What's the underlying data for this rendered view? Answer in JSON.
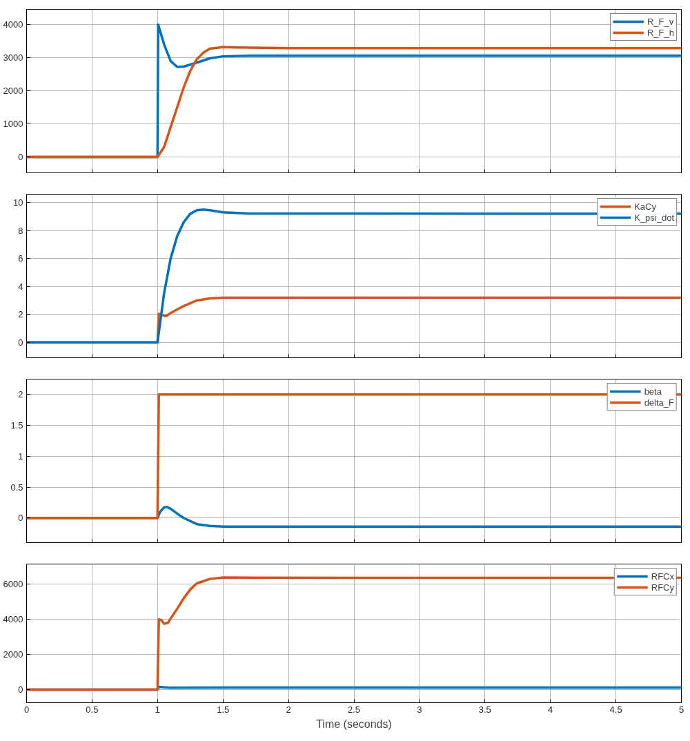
{
  "chart_data": [
    {
      "type": "line",
      "xlim": [
        0,
        5
      ],
      "xticks": [
        0,
        0.5,
        1,
        1.5,
        2,
        2.5,
        3,
        3.5,
        4,
        4.5,
        5
      ],
      "ylim": [
        -480,
        4460
      ],
      "yticks": [
        0,
        1000,
        2000,
        3000,
        4000
      ],
      "grid": true,
      "legend": "top right",
      "tick_labels": "y",
      "series": [
        {
          "name": "R_F_v",
          "color": "#0072bd",
          "x": [
            0,
            1.0,
            1.005,
            1.05,
            1.1,
            1.15,
            1.2,
            1.3,
            1.4,
            1.5,
            1.7,
            5
          ],
          "values": [
            0,
            0,
            4000,
            3400,
            2900,
            2720,
            2730,
            2850,
            2980,
            3040,
            3060,
            3060
          ]
        },
        {
          "name": "R_F_h",
          "color": "#d95319",
          "x": [
            0,
            1.0,
            1.05,
            1.1,
            1.15,
            1.2,
            1.25,
            1.3,
            1.35,
            1.4,
            1.5,
            1.6,
            2,
            5
          ],
          "values": [
            0,
            0,
            300,
            900,
            1500,
            2100,
            2600,
            2950,
            3150,
            3270,
            3320,
            3310,
            3290,
            3290
          ]
        }
      ]
    },
    {
      "type": "line",
      "xlim": [
        0,
        5
      ],
      "xticks": [
        0,
        0.5,
        1,
        1.5,
        2,
        2.5,
        3,
        3.5,
        4,
        4.5,
        5
      ],
      "ylim": [
        -1.1,
        10.6
      ],
      "yticks": [
        0,
        2,
        4,
        6,
        8,
        10
      ],
      "grid": true,
      "legend": "top right",
      "tick_labels": "y",
      "series": [
        {
          "name": "KaCy",
          "color": "#d95319",
          "x": [
            0,
            1.0,
            1.01,
            1.05,
            1.07,
            1.1,
            1.2,
            1.3,
            1.4,
            1.5,
            5
          ],
          "values": [
            0,
            0,
            2.05,
            1.9,
            1.9,
            2.1,
            2.6,
            3.0,
            3.15,
            3.2,
            3.2
          ]
        },
        {
          "name": "K_psi_dot",
          "color": "#0072bd",
          "x": [
            0,
            1.0,
            1.05,
            1.1,
            1.15,
            1.2,
            1.25,
            1.3,
            1.35,
            1.4,
            1.5,
            1.7,
            5
          ],
          "values": [
            0,
            0,
            3.5,
            6.0,
            7.6,
            8.6,
            9.2,
            9.45,
            9.5,
            9.45,
            9.3,
            9.22,
            9.2
          ]
        }
      ]
    },
    {
      "type": "line",
      "xlim": [
        0,
        5
      ],
      "xticks": [
        0,
        0.5,
        1,
        1.5,
        2,
        2.5,
        3,
        3.5,
        4,
        4.5,
        5
      ],
      "ylim": [
        -0.4,
        2.25
      ],
      "yticks": [
        0,
        0.5,
        1,
        1.5,
        2
      ],
      "grid": true,
      "legend": "top right",
      "tick_labels": "y",
      "series": [
        {
          "name": "beta",
          "color": "#0072bd",
          "x": [
            0,
            1.0,
            1.02,
            1.05,
            1.07,
            1.1,
            1.15,
            1.2,
            1.3,
            1.4,
            1.5,
            5
          ],
          "values": [
            0,
            0,
            0.1,
            0.17,
            0.18,
            0.15,
            0.07,
            0.0,
            -0.1,
            -0.13,
            -0.14,
            -0.14
          ]
        },
        {
          "name": "delta_F",
          "color": "#d95319",
          "x": [
            0,
            1.0,
            1.01,
            5
          ],
          "values": [
            0,
            0,
            2,
            2
          ]
        }
      ]
    },
    {
      "type": "line",
      "xlim": [
        0,
        5
      ],
      "xticks": [
        0,
        0.5,
        1,
        1.5,
        2,
        2.5,
        3,
        3.5,
        4,
        4.5,
        5
      ],
      "ylim": [
        -750,
        7150
      ],
      "yticks": [
        0,
        2000,
        4000,
        6000
      ],
      "grid": true,
      "legend": "top right",
      "xlabel": "Time (seconds)",
      "series": [
        {
          "name": "RFCx",
          "color": "#0072bd",
          "x": [
            0,
            1.0,
            1.01,
            1.1,
            1.5,
            5
          ],
          "values": [
            0,
            0,
            150,
            100,
            110,
            110
          ]
        },
        {
          "name": "RFCy",
          "color": "#d95319",
          "x": [
            0,
            1.0,
            1.01,
            1.03,
            1.05,
            1.08,
            1.1,
            1.15,
            1.2,
            1.25,
            1.3,
            1.4,
            1.5,
            1.7,
            5
          ],
          "values": [
            0,
            0,
            4000,
            3950,
            3750,
            3800,
            4050,
            4600,
            5200,
            5700,
            6050,
            6300,
            6380,
            6370,
            6360
          ]
        }
      ]
    }
  ]
}
